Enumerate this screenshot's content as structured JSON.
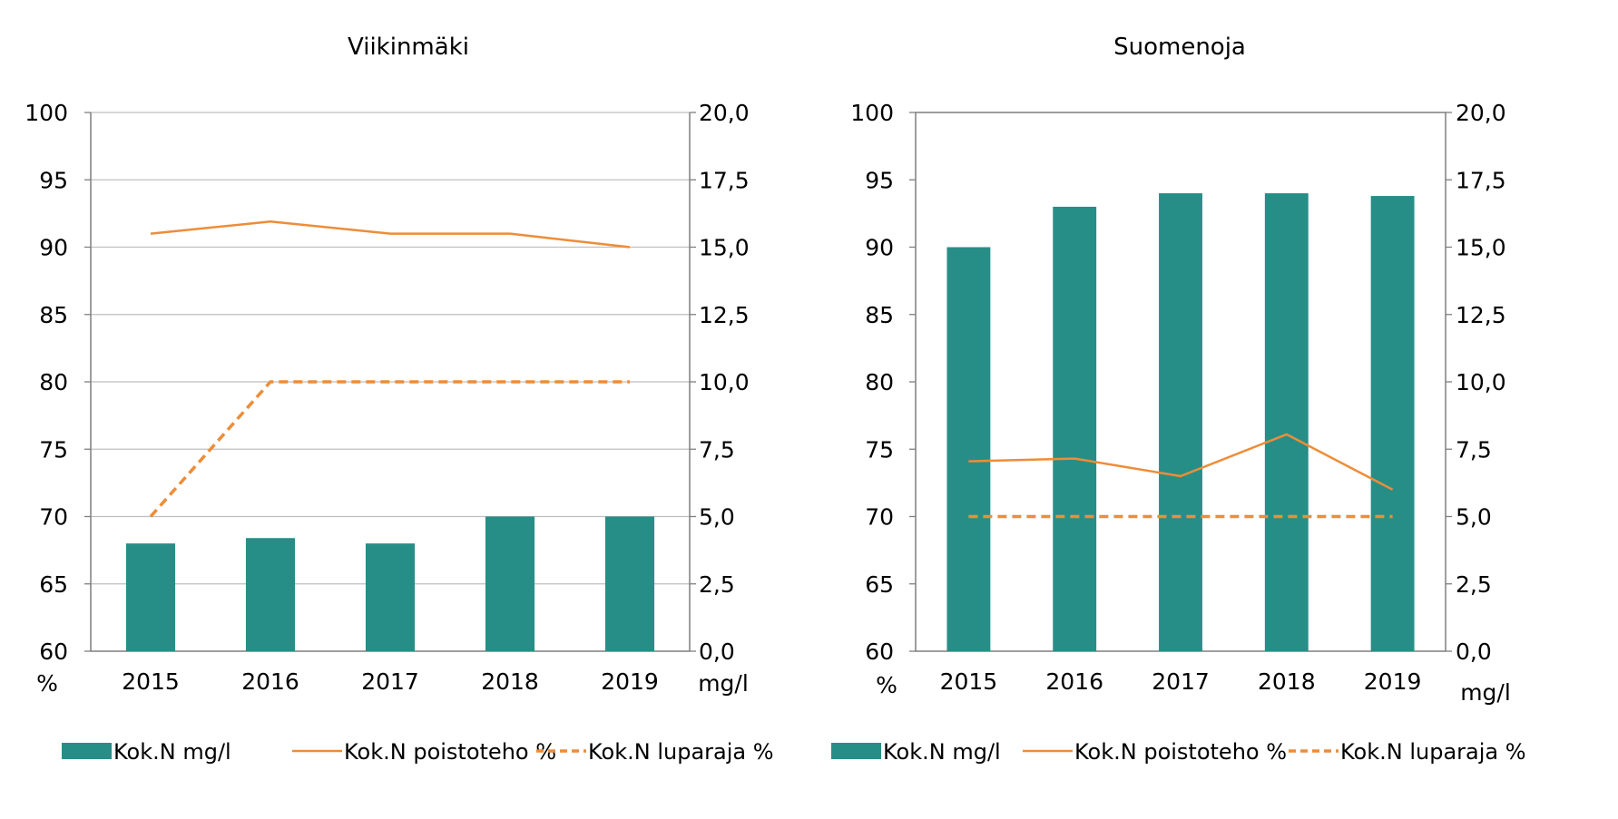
{
  "colors": {
    "bar": "#278E87",
    "line": "#ED8D38",
    "grid": "#BFBFBF",
    "axis": "#7F7F7F"
  },
  "chart_data": [
    {
      "type": "bar",
      "title": "Viikinmäki",
      "categories": [
        "2015",
        "2016",
        "2017",
        "2018",
        "2019"
      ],
      "y_left": {
        "unit": "%",
        "ylim": [
          60,
          100
        ],
        "ticks": [
          "60",
          "65",
          "70",
          "75",
          "80",
          "85",
          "90",
          "95",
          "100"
        ]
      },
      "y_right": {
        "unit": "mg/l",
        "ylim": [
          0,
          20
        ],
        "ticks": [
          "0,0",
          "2,5",
          "5,0",
          "7,5",
          "10,0",
          "12,5",
          "15,0",
          "17,5",
          "20,0"
        ]
      },
      "series": [
        {
          "name": "Kok.N mg/l",
          "kind": "bar",
          "axis": "right",
          "values": [
            4.0,
            4.2,
            4.0,
            5.0,
            5.0
          ]
        },
        {
          "name": "Kok.N poistoteho %",
          "kind": "line",
          "axis": "left",
          "values": [
            91,
            91.9,
            91,
            91,
            90
          ]
        },
        {
          "name": "Kok.N luparaja %",
          "kind": "dashed",
          "axis": "left",
          "values": [
            70,
            80,
            80,
            80,
            80
          ]
        }
      ],
      "grid": true,
      "legend": "bottom"
    },
    {
      "type": "bar",
      "title": "Suomenoja",
      "categories": [
        "2015",
        "2016",
        "2017",
        "2018",
        "2019"
      ],
      "y_left": {
        "unit": "%",
        "ylim": [
          60,
          100
        ],
        "ticks": [
          "60",
          "65",
          "70",
          "75",
          "80",
          "85",
          "90",
          "95",
          "100"
        ]
      },
      "y_right": {
        "unit": "mg/l",
        "ylim": [
          0,
          20
        ],
        "ticks": [
          "0,0",
          "2,5",
          "5,0",
          "7,5",
          "10,0",
          "12,5",
          "15,0",
          "17,5",
          "20,0"
        ]
      },
      "series": [
        {
          "name": "Kok.N mg/l",
          "kind": "bar",
          "axis": "right",
          "values": [
            15.0,
            16.5,
            17.0,
            17.0,
            16.9
          ]
        },
        {
          "name": "Kok.N poistoteho %",
          "kind": "line",
          "axis": "left",
          "values": [
            74.1,
            74.3,
            73,
            76.1,
            72
          ]
        },
        {
          "name": "Kok.N luparaja %",
          "kind": "dashed",
          "axis": "left",
          "values": [
            70,
            70,
            70,
            70,
            70
          ]
        }
      ],
      "grid": false,
      "legend": "bottom"
    }
  ]
}
